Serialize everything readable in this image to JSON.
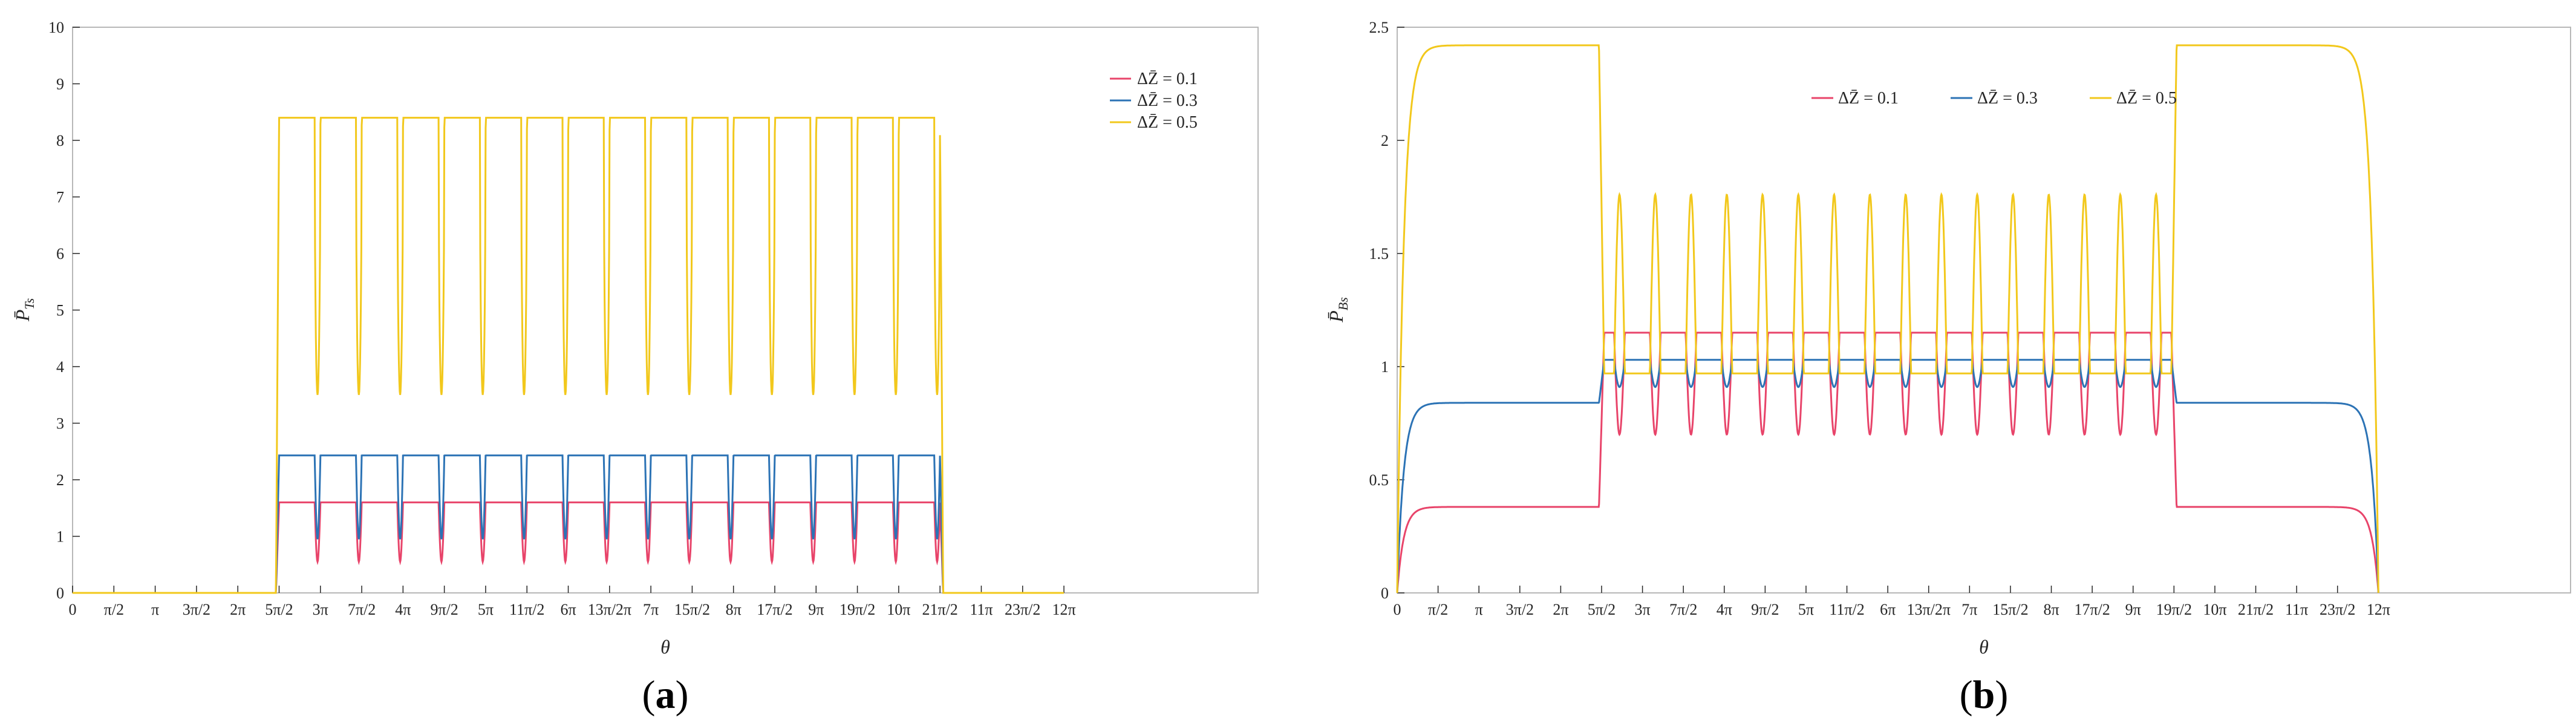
{
  "colors": {
    "dz_01": "#e8446a",
    "dz_03": "#2c73b5",
    "dz_05": "#f2c81c",
    "axis": "#b8b8b8",
    "grid": "#262626"
  },
  "theta_tick_labels": [
    "0",
    "π/2",
    "π",
    "3π/2",
    "2π",
    "5π/2",
    "3π",
    "7π/2",
    "4π",
    "9π/2",
    "5π",
    "11π/2",
    "6π",
    "13π/2π",
    "7π",
    "15π/2",
    "8π",
    "17π/2",
    "9π",
    "19π/2",
    "10π",
    "21π/2",
    "11π",
    "23π/2",
    "12π"
  ],
  "chart_data": [
    {
      "type": "line",
      "panel_label": "a",
      "xlabel": "θ",
      "ylabel": "P̄Ts",
      "ylabel_main": "P̄",
      "ylabel_sub": "Ts",
      "x_unit": "π/2",
      "xlim": [
        0,
        12.566
      ],
      "ylim": [
        0,
        10
      ],
      "y_ticks": [
        "0",
        "1",
        "2",
        "3",
        "4",
        "5",
        "6",
        "7",
        "8",
        "9",
        "10"
      ],
      "legend_position": "top-right",
      "active_range_theta": [
        7.854,
        32.987
      ],
      "n_pulses": 16,
      "series": [
        {
          "name": "ΔZ̄ = 0.1",
          "plateau": 1.6,
          "dip_min": 0.55,
          "outside": 0
        },
        {
          "name": "ΔZ̄ = 0.3",
          "plateau": 2.43,
          "dip_min": 0.95,
          "outside": 0
        },
        {
          "name": "ΔZ̄ = 0.5",
          "plateau": 8.4,
          "dip_min": 3.5,
          "outside": 0
        }
      ]
    },
    {
      "type": "line",
      "panel_label": "b",
      "xlabel": "θ",
      "ylabel": "P̄Bs",
      "ylabel_main": "P̄",
      "ylabel_sub": "Bs",
      "xlim": [
        0,
        37.699
      ],
      "ylim": [
        0,
        2.5
      ],
      "y_ticks": [
        "0",
        "0.5",
        "1",
        "1.5",
        "2",
        "2.5"
      ],
      "legend_position": "top-center",
      "active_range_theta": [
        7.854,
        29.845
      ],
      "n_pulses": 16,
      "series": [
        {
          "name": "ΔZ̄ = 0.1",
          "plateau_inner": 1.15,
          "dip_min": 0.7,
          "plateau_outer": 0.38
        },
        {
          "name": "ΔZ̄ = 0.3",
          "plateau_inner": 1.03,
          "dip_min": 0.91,
          "plateau_outer": 0.84
        },
        {
          "name": "ΔZ̄ = 0.5",
          "plateau_inner": 0.97,
          "peak": 1.76,
          "plateau_outer": 2.42
        }
      ]
    }
  ]
}
